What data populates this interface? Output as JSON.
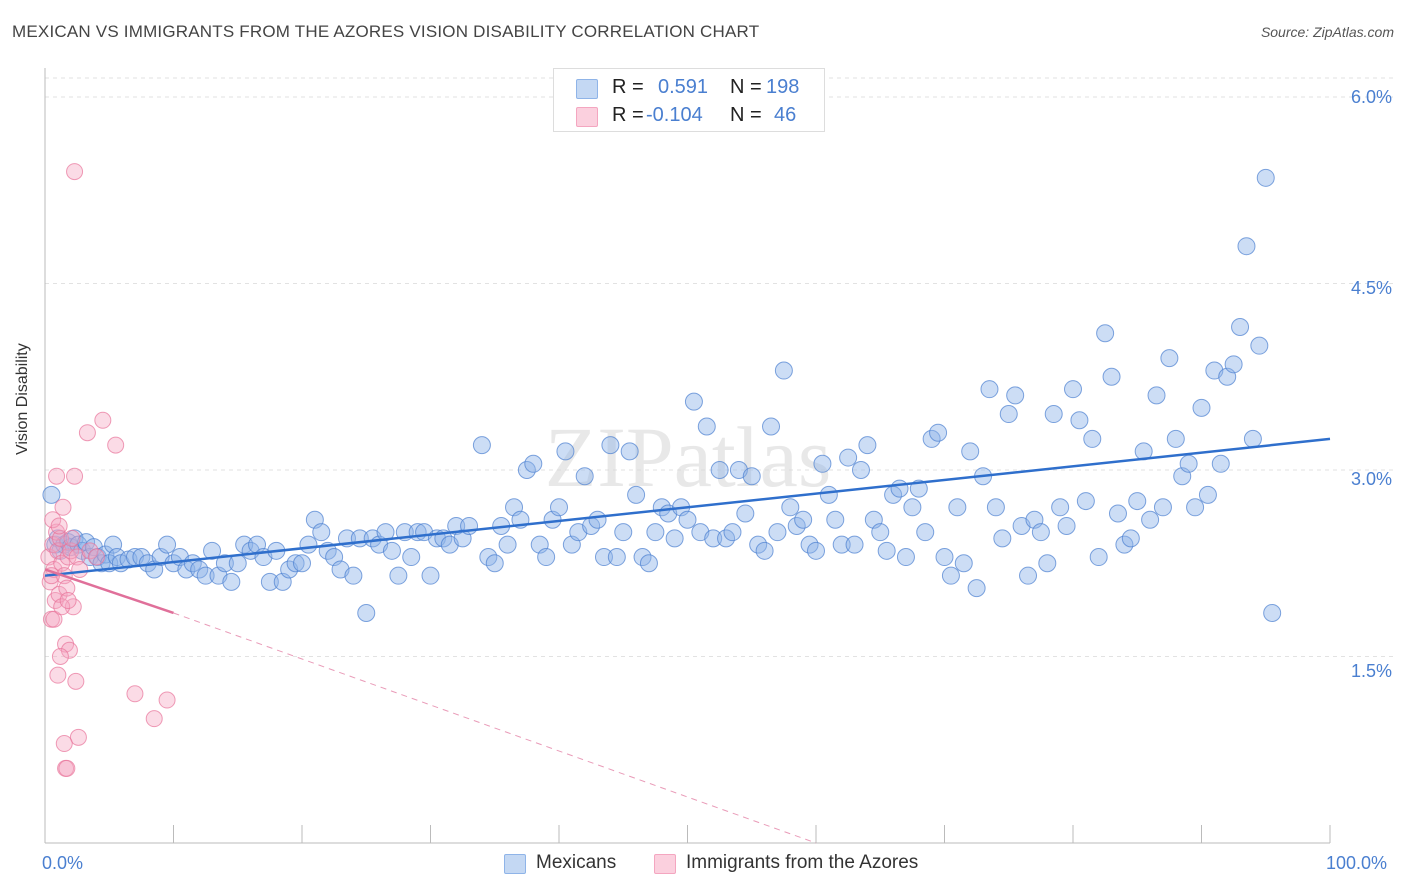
{
  "title": "MEXICAN VS IMMIGRANTS FROM THE AZORES VISION DISABILITY CORRELATION CHART",
  "source": "Source: ZipAtlas.com",
  "watermark": "ZIPatlas",
  "legend_top": {
    "rows": [
      {
        "r_label": "R =",
        "r_value": "0.591",
        "n_label": "N =",
        "n_value": "198",
        "color": "#8fb4e8"
      },
      {
        "r_label": "R =",
        "r_value": "-0.104",
        "n_label": "N =",
        "n_value": "46",
        "color": "#f4a6c0"
      }
    ]
  },
  "bottom_legend": [
    {
      "label": "Mexicans",
      "color": "#8fb4e8"
    },
    {
      "label": "Immigrants from the Azores",
      "color": "#f4a6c0"
    }
  ],
  "chart_data": {
    "type": "scatter",
    "title": "MEXICAN VS IMMIGRANTS FROM THE AZORES VISION DISABILITY CORRELATION CHART",
    "xlabel": "",
    "ylabel": "Vision Disability",
    "xlim": [
      0,
      100
    ],
    "ylim": [
      0,
      6.3
    ],
    "x_tick_labels": [
      "0.0%",
      "100.0%"
    ],
    "y_ticks": [
      1.5,
      3.0,
      4.5,
      6.0
    ],
    "y_tick_labels": [
      "1.5%",
      "3.0%",
      "4.5%",
      "6.0%"
    ],
    "grid": true,
    "legend_position": "top-center",
    "series": [
      {
        "name": "Mexicans",
        "color": "#4a7fd0",
        "fill": "#8fb4e8",
        "r": 0.591,
        "n": 198,
        "trend": {
          "x": [
            0,
            100
          ],
          "y": [
            2.15,
            3.25
          ],
          "style": "solid"
        },
        "points": [
          [
            0.5,
            2.8
          ],
          [
            0.8,
            2.4
          ],
          [
            1.0,
            2.45
          ],
          [
            1.2,
            2.35
          ],
          [
            1.5,
            2.4
          ],
          [
            1.8,
            2.42
          ],
          [
            2.0,
            2.38
          ],
          [
            2.3,
            2.45
          ],
          [
            2.6,
            2.4
          ],
          [
            2.9,
            2.35
          ],
          [
            3.2,
            2.42
          ],
          [
            3.5,
            2.3
          ],
          [
            3.8,
            2.38
          ],
          [
            4.1,
            2.3
          ],
          [
            4.4,
            2.25
          ],
          [
            4.7,
            2.32
          ],
          [
            5.0,
            2.25
          ],
          [
            5.3,
            2.4
          ],
          [
            5.6,
            2.3
          ],
          [
            5.9,
            2.25
          ],
          [
            6.5,
            2.28
          ],
          [
            7.0,
            2.3
          ],
          [
            7.5,
            2.3
          ],
          [
            8.0,
            2.25
          ],
          [
            8.5,
            2.2
          ],
          [
            9.0,
            2.3
          ],
          [
            9.5,
            2.4
          ],
          [
            10.0,
            2.25
          ],
          [
            10.5,
            2.3
          ],
          [
            11.0,
            2.2
          ],
          [
            11.5,
            2.25
          ],
          [
            12.0,
            2.2
          ],
          [
            12.5,
            2.15
          ],
          [
            13.0,
            2.35
          ],
          [
            13.5,
            2.15
          ],
          [
            14.0,
            2.25
          ],
          [
            14.5,
            2.1
          ],
          [
            15.0,
            2.25
          ],
          [
            15.5,
            2.4
          ],
          [
            16.0,
            2.35
          ],
          [
            16.5,
            2.4
          ],
          [
            17.0,
            2.3
          ],
          [
            17.5,
            2.1
          ],
          [
            18.0,
            2.35
          ],
          [
            18.5,
            2.1
          ],
          [
            19.0,
            2.2
          ],
          [
            19.5,
            2.25
          ],
          [
            20.0,
            2.25
          ],
          [
            20.5,
            2.4
          ],
          [
            21.0,
            2.6
          ],
          [
            21.5,
            2.5
          ],
          [
            22.0,
            2.35
          ],
          [
            22.5,
            2.3
          ],
          [
            23.0,
            2.2
          ],
          [
            23.5,
            2.45
          ],
          [
            24.0,
            2.15
          ],
          [
            24.5,
            2.45
          ],
          [
            25.0,
            1.85
          ],
          [
            25.5,
            2.45
          ],
          [
            26.0,
            2.4
          ],
          [
            26.5,
            2.5
          ],
          [
            27.0,
            2.35
          ],
          [
            27.5,
            2.15
          ],
          [
            28.0,
            2.5
          ],
          [
            28.5,
            2.3
          ],
          [
            29.0,
            2.5
          ],
          [
            29.5,
            2.5
          ],
          [
            30.0,
            2.15
          ],
          [
            30.5,
            2.45
          ],
          [
            31.0,
            2.45
          ],
          [
            31.5,
            2.4
          ],
          [
            32.0,
            2.55
          ],
          [
            32.5,
            2.45
          ],
          [
            33.0,
            2.55
          ],
          [
            34.0,
            3.2
          ],
          [
            34.5,
            2.3
          ],
          [
            35.0,
            2.25
          ],
          [
            35.5,
            2.55
          ],
          [
            36.0,
            2.4
          ],
          [
            36.5,
            2.7
          ],
          [
            37.0,
            2.6
          ],
          [
            37.5,
            3.0
          ],
          [
            38.0,
            3.05
          ],
          [
            38.5,
            2.4
          ],
          [
            39.0,
            2.3
          ],
          [
            39.5,
            2.6
          ],
          [
            40.0,
            2.7
          ],
          [
            40.5,
            3.15
          ],
          [
            41.0,
            2.4
          ],
          [
            41.5,
            2.5
          ],
          [
            42.0,
            2.95
          ],
          [
            42.5,
            2.55
          ],
          [
            43.0,
            2.6
          ],
          [
            43.5,
            2.3
          ],
          [
            44.0,
            3.2
          ],
          [
            44.5,
            2.3
          ],
          [
            45.0,
            2.5
          ],
          [
            45.5,
            3.15
          ],
          [
            46.0,
            2.8
          ],
          [
            46.5,
            2.3
          ],
          [
            47.0,
            2.25
          ],
          [
            47.5,
            2.5
          ],
          [
            48.0,
            2.7
          ],
          [
            48.5,
            2.65
          ],
          [
            49.0,
            2.45
          ],
          [
            49.5,
            2.7
          ],
          [
            50.0,
            2.6
          ],
          [
            50.5,
            3.55
          ],
          [
            51.0,
            2.5
          ],
          [
            51.5,
            3.35
          ],
          [
            52.0,
            2.45
          ],
          [
            52.5,
            3.0
          ],
          [
            53.0,
            2.45
          ],
          [
            53.5,
            2.5
          ],
          [
            54.0,
            3.0
          ],
          [
            54.5,
            2.65
          ],
          [
            55.0,
            2.95
          ],
          [
            55.5,
            2.4
          ],
          [
            56.0,
            2.35
          ],
          [
            56.5,
            3.35
          ],
          [
            57.0,
            2.5
          ],
          [
            57.5,
            3.8
          ],
          [
            58.0,
            2.7
          ],
          [
            58.5,
            2.55
          ],
          [
            59.0,
            2.6
          ],
          [
            59.5,
            2.4
          ],
          [
            60.0,
            2.35
          ],
          [
            60.5,
            3.05
          ],
          [
            61.0,
            2.8
          ],
          [
            61.5,
            2.6
          ],
          [
            62.0,
            2.4
          ],
          [
            62.5,
            3.1
          ],
          [
            63.0,
            2.4
          ],
          [
            63.5,
            3.0
          ],
          [
            64.0,
            3.2
          ],
          [
            64.5,
            2.6
          ],
          [
            65.0,
            2.5
          ],
          [
            65.5,
            2.35
          ],
          [
            66.0,
            2.8
          ],
          [
            66.5,
            2.85
          ],
          [
            67.0,
            2.3
          ],
          [
            67.5,
            2.7
          ],
          [
            68.0,
            2.85
          ],
          [
            68.5,
            2.5
          ],
          [
            69.0,
            3.25
          ],
          [
            69.5,
            3.3
          ],
          [
            70.0,
            2.3
          ],
          [
            70.5,
            2.15
          ],
          [
            71.0,
            2.7
          ],
          [
            71.5,
            2.25
          ],
          [
            72.0,
            3.15
          ],
          [
            72.5,
            2.05
          ],
          [
            73.0,
            2.95
          ],
          [
            73.5,
            3.65
          ],
          [
            74.0,
            2.7
          ],
          [
            74.5,
            2.45
          ],
          [
            75.0,
            3.45
          ],
          [
            75.5,
            3.6
          ],
          [
            76.0,
            2.55
          ],
          [
            76.5,
            2.15
          ],
          [
            77.0,
            2.6
          ],
          [
            77.5,
            2.5
          ],
          [
            78.0,
            2.25
          ],
          [
            78.5,
            3.45
          ],
          [
            79.0,
            2.7
          ],
          [
            79.5,
            2.55
          ],
          [
            80.0,
            3.65
          ],
          [
            80.5,
            3.4
          ],
          [
            81.0,
            2.75
          ],
          [
            81.5,
            3.25
          ],
          [
            82.0,
            2.3
          ],
          [
            82.5,
            4.1
          ],
          [
            83.0,
            3.75
          ],
          [
            83.5,
            2.65
          ],
          [
            84.0,
            2.4
          ],
          [
            84.5,
            2.45
          ],
          [
            85.0,
            2.75
          ],
          [
            85.5,
            3.15
          ],
          [
            86.0,
            2.6
          ],
          [
            86.5,
            3.6
          ],
          [
            87.0,
            2.7
          ],
          [
            87.5,
            3.9
          ],
          [
            88.0,
            3.25
          ],
          [
            88.5,
            2.95
          ],
          [
            89.0,
            3.05
          ],
          [
            89.5,
            2.7
          ],
          [
            90.0,
            3.5
          ],
          [
            90.5,
            2.8
          ],
          [
            91.0,
            3.8
          ],
          [
            91.5,
            3.05
          ],
          [
            92.0,
            3.75
          ],
          [
            92.5,
            3.85
          ],
          [
            93.0,
            4.15
          ],
          [
            93.5,
            4.8
          ],
          [
            94.0,
            3.25
          ],
          [
            94.5,
            4.0
          ],
          [
            95.0,
            5.35
          ],
          [
            95.5,
            1.85
          ]
        ]
      },
      {
        "name": "Immigrants from the Azores",
        "color": "#e8739a",
        "fill": "#f4a6c0",
        "r": -0.104,
        "n": 46,
        "trend": {
          "x": [
            0,
            10
          ],
          "y": [
            2.2,
            1.85
          ],
          "dashed_extension": {
            "x": [
              10,
              60
            ],
            "y": [
              1.85,
              0.0
            ]
          }
        },
        "points": [
          [
            0.3,
            2.3
          ],
          [
            0.4,
            2.1
          ],
          [
            0.5,
            1.8
          ],
          [
            0.6,
            2.4
          ],
          [
            0.7,
            2.2
          ],
          [
            0.8,
            1.95
          ],
          [
            0.9,
            2.5
          ],
          [
            1.0,
            2.35
          ],
          [
            1.1,
            2.0
          ],
          [
            1.2,
            2.45
          ],
          [
            1.3,
            2.25
          ],
          [
            1.4,
            2.7
          ],
          [
            1.5,
            2.15
          ],
          [
            1.6,
            1.6
          ],
          [
            1.7,
            2.05
          ],
          [
            1.8,
            2.3
          ],
          [
            1.9,
            1.55
          ],
          [
            2.0,
            2.35
          ],
          [
            2.1,
            2.45
          ],
          [
            2.2,
            1.9
          ],
          [
            2.3,
            2.95
          ],
          [
            2.4,
            1.3
          ],
          [
            2.5,
            2.3
          ],
          [
            2.6,
            0.85
          ],
          [
            2.7,
            2.2
          ],
          [
            1.5,
            0.8
          ],
          [
            1.6,
            0.6
          ],
          [
            1.7,
            0.6
          ],
          [
            1.0,
            1.35
          ],
          [
            1.2,
            1.5
          ],
          [
            2.3,
            5.4
          ],
          [
            3.3,
            3.3
          ],
          [
            4.5,
            3.4
          ],
          [
            5.5,
            3.2
          ],
          [
            7.0,
            1.2
          ],
          [
            8.5,
            1.0
          ],
          [
            9.5,
            1.15
          ],
          [
            3.5,
            2.35
          ],
          [
            4.0,
            2.3
          ],
          [
            0.6,
            2.6
          ],
          [
            0.5,
            2.15
          ],
          [
            0.7,
            1.8
          ],
          [
            1.3,
            1.9
          ],
          [
            0.9,
            2.95
          ],
          [
            1.1,
            2.55
          ],
          [
            1.8,
            1.95
          ]
        ]
      }
    ]
  }
}
